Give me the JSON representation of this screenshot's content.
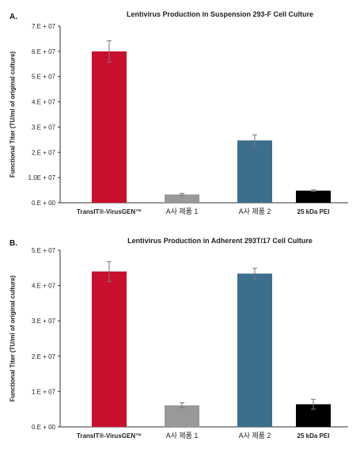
{
  "chart_data": [
    {
      "panel": "A.",
      "type": "bar",
      "title": "Lentivirus Production in Suspension 293-F Cell Culture",
      "ylabel": "Functional Titer (TU/ml of original culture)",
      "ylim": [
        0,
        70000000
      ],
      "yticks": [
        0,
        10000000,
        20000000,
        30000000,
        40000000,
        50000000,
        60000000,
        70000000
      ],
      "ytick_labels": [
        "0.E + 00",
        "1.0E + 07",
        "2.E + 07",
        "3.E + 07",
        "4.E + 07",
        "5.E + 07",
        "6.E + 07",
        "7.E + 07"
      ],
      "categories": [
        "TransIT®-VirusGEN™",
        "A사 제품 1",
        "A사 제품 2",
        "25 kDa PEI"
      ],
      "values": [
        60000000,
        3300000,
        24700000,
        4800000
      ],
      "errors": [
        4200000,
        400000,
        2200000,
        300000
      ],
      "colors": [
        "#c8102e",
        "#999999",
        "#3e6e8e",
        "#000000"
      ],
      "grid": false,
      "legend": "none"
    },
    {
      "panel": "B.",
      "type": "bar",
      "title": "Lentivirus Production in Adherent 293T/17 Cell Culture",
      "ylabel": "Functional Titer (TU/ml of original culture)",
      "ylim": [
        0,
        50000000
      ],
      "yticks": [
        0,
        10000000,
        20000000,
        30000000,
        40000000,
        50000000
      ],
      "ytick_labels": [
        "0.E + 00",
        "1.E + 07",
        "2.E + 07",
        "3.E + 07",
        "4.E + 07",
        "5.E + 07"
      ],
      "categories": [
        "TransIT®-VirusGEN™",
        "A사 제품 1",
        "A사 제품 2",
        "25 kDa PEI"
      ],
      "values": [
        44000000,
        6100000,
        43400000,
        6400000
      ],
      "errors": [
        2800000,
        700000,
        1500000,
        1400000
      ],
      "colors": [
        "#c8102e",
        "#999999",
        "#3e6e8e",
        "#000000"
      ],
      "grid": false,
      "legend": "none"
    }
  ]
}
